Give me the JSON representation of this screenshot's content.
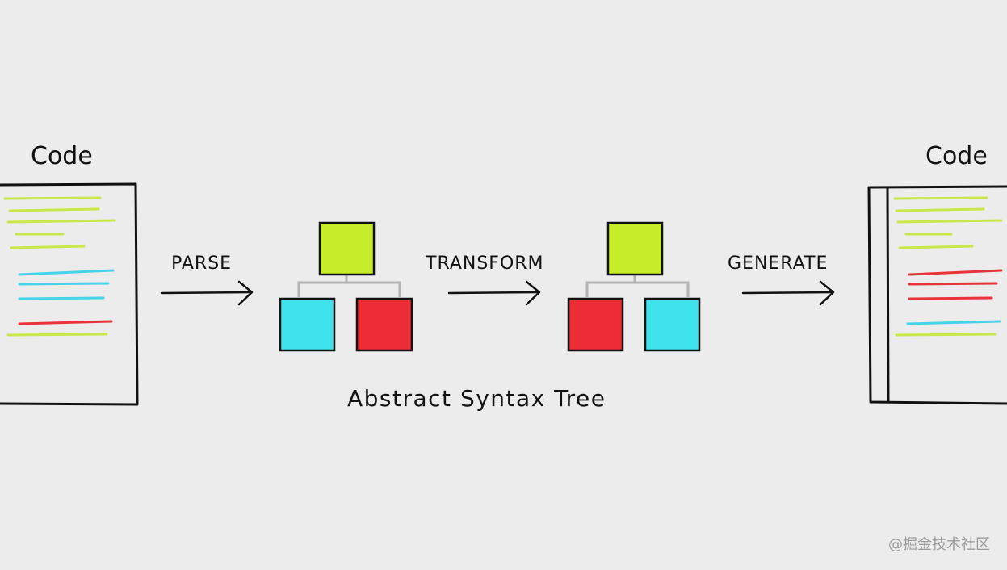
{
  "source_doc": {
    "title": "Code",
    "line_colors": [
      "#c9e64a",
      "#c9e64a",
      "#c9e64a",
      "#c9e64a",
      "#c9e64a",
      "#46d3e8",
      "#46d3e8",
      "#46d3e8",
      "#e8333b",
      "#c9e64a"
    ]
  },
  "output_doc": {
    "title": "Code",
    "line_colors": [
      "#c9e64a",
      "#c9e64a",
      "#c9e64a",
      "#c9e64a",
      "#c9e64a",
      "#e8333b",
      "#e8333b",
      "#e8333b",
      "#46d3e8",
      "#c9e64a"
    ]
  },
  "steps": {
    "parse": "PARSE",
    "transform": "TRANSFORM",
    "generate": "GENERATE"
  },
  "ast_caption": "Abstract Syntax Tree",
  "tree_before": {
    "root_color": "#c7ec2a",
    "left_color": "#3fe3ee",
    "right_color": "#ee2c36"
  },
  "tree_after": {
    "root_color": "#c7ec2a",
    "left_color": "#ee2c36",
    "right_color": "#3fe3ee"
  },
  "watermark": "@掘金技术社区",
  "colors": {
    "ink": "#111111",
    "connector": "#b3b3b3",
    "background": "#ececec"
  }
}
